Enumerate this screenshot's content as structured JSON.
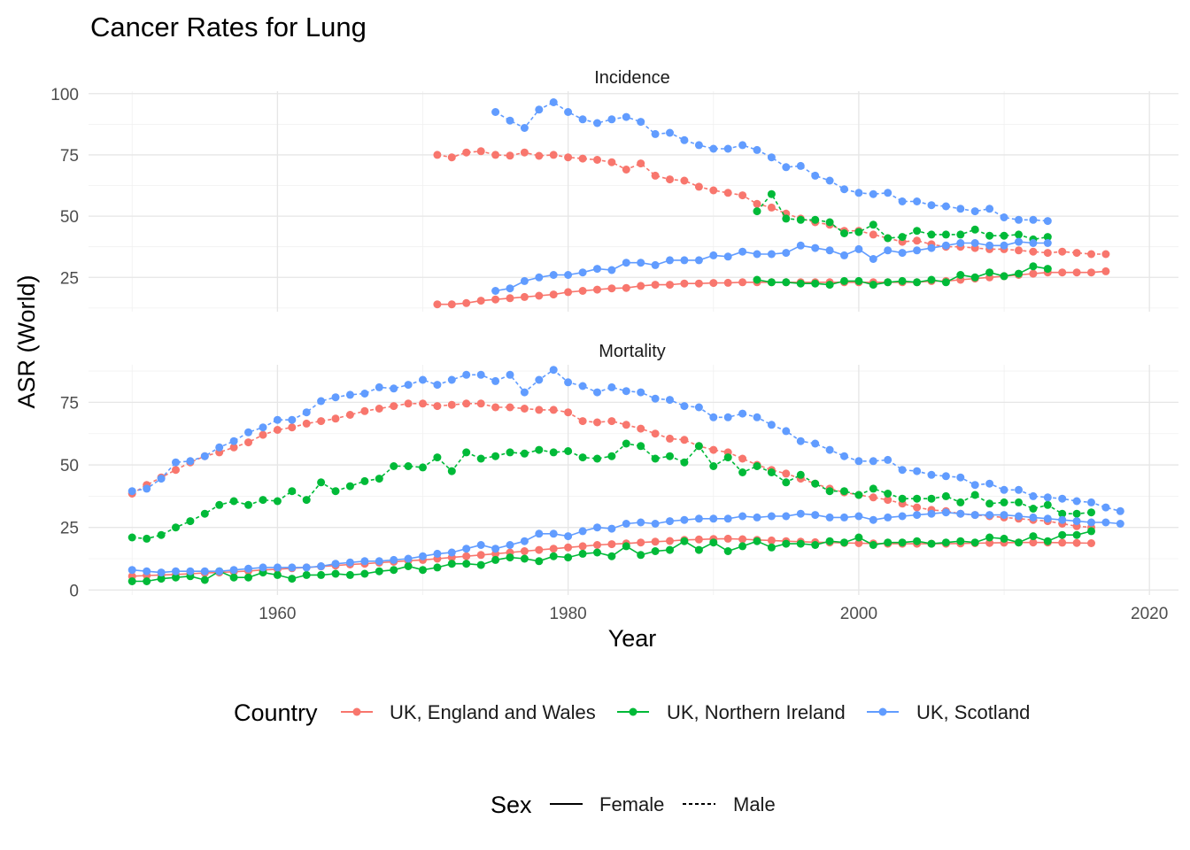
{
  "chart_data": {
    "type": "line",
    "title": "Cancer Rates for Lung",
    "xlabel": "Year",
    "ylabel": "ASR (World)",
    "x_ticks": [
      1960,
      1980,
      2000,
      2020
    ],
    "xlim": [
      1947,
      2022
    ],
    "grid": true,
    "colors": {
      "UK, England and Wales": "#F8766D",
      "UK, Northern Ireland": "#00BA38",
      "UK, Scotland": "#619CFF"
    },
    "legend": {
      "position": "bottom",
      "country_title": "Country",
      "countries": [
        "UK, England and Wales",
        "UK, Northern Ireland",
        "UK, Scotland"
      ],
      "sex_title": "Sex",
      "sexes": [
        {
          "label": "Female",
          "linetype": "solid"
        },
        {
          "label": "Male",
          "linetype": "dashed"
        }
      ]
    },
    "panels": [
      {
        "label": "Incidence",
        "ylim": [
          11,
          101
        ],
        "y_ticks": [
          25,
          50,
          75,
          100
        ],
        "series": [
          {
            "country": "UK, England and Wales",
            "sex": "Male",
            "start": 1971,
            "values": [
              75.0,
              74.0,
              76.0,
              76.5,
              75.0,
              74.7,
              76.0,
              74.6,
              75.0,
              74.0,
              73.5,
              73.0,
              72.0,
              69.0,
              71.5,
              66.5,
              65.0,
              64.5,
              62.0,
              60.5,
              59.5,
              58.5,
              55.0,
              53.5,
              51.0,
              49.0,
              47.5,
              46.5,
              44.0,
              44.0,
              42.5,
              41.0,
              39.5,
              40.0,
              38.5,
              37.5,
              37.5,
              37.0,
              36.5,
              36.5,
              36.0,
              35.5,
              35.0,
              35.5,
              35.0,
              34.5,
              34.5
            ]
          },
          {
            "country": "UK, England and Wales",
            "sex": "Female",
            "start": 1971,
            "values": [
              14.0,
              14.0,
              14.5,
              15.5,
              16.0,
              16.5,
              17.0,
              17.5,
              18.0,
              19.0,
              19.5,
              20.0,
              20.5,
              20.7,
              21.5,
              22.0,
              22.0,
              22.5,
              22.5,
              22.7,
              22.8,
              23.0,
              23.0,
              23.0,
              23.0,
              23.0,
              23.0,
              23.0,
              23.0,
              23.0,
              23.0,
              23.0,
              23.0,
              23.0,
              23.5,
              23.5,
              24.0,
              24.5,
              25.0,
              25.5,
              26.0,
              26.5,
              27.0,
              27.0,
              27.0,
              27.0,
              27.5
            ]
          },
          {
            "country": "UK, Northern Ireland",
            "sex": "Male",
            "start": 1993,
            "values": [
              52.0,
              59.0,
              49.0,
              48.5,
              48.5,
              47.5,
              43.0,
              43.5,
              46.5,
              41.0,
              41.5,
              44.0,
              42.5,
              42.5,
              42.5,
              44.5,
              42.0,
              42.0,
              42.5,
              40.5,
              41.5
            ]
          },
          {
            "country": "UK, Northern Ireland",
            "sex": "Female",
            "start": 1993,
            "values": [
              24.0,
              23.0,
              23.0,
              22.5,
              22.5,
              22.0,
              23.5,
              23.5,
              22.0,
              23.0,
              23.5,
              23.0,
              24.0,
              23.0,
              26.0,
              25.0,
              27.0,
              25.5,
              26.5,
              29.5,
              28.5
            ]
          },
          {
            "country": "UK, Scotland",
            "sex": "Male",
            "start": 1975,
            "values": [
              92.5,
              89.0,
              86.0,
              93.5,
              96.5,
              92.5,
              89.5,
              88.0,
              89.5,
              90.5,
              88.5,
              83.5,
              84.0,
              81.0,
              79.0,
              77.5,
              77.5,
              79.0,
              77.0,
              74.0,
              70.0,
              70.5,
              66.5,
              64.5,
              61.0,
              59.5,
              59.0,
              59.5,
              56.0,
              56.0,
              54.5,
              54.0,
              53.0,
              52.0,
              53.0,
              49.5,
              48.5,
              48.5,
              48.0
            ]
          },
          {
            "country": "UK, Scotland",
            "sex": "Female",
            "start": 1975,
            "values": [
              19.5,
              20.5,
              23.5,
              25.0,
              26.0,
              26.0,
              27.0,
              28.5,
              28.0,
              31.0,
              31.0,
              30.0,
              32.0,
              32.0,
              32.0,
              34.0,
              33.5,
              35.5,
              34.5,
              34.5,
              35.0,
              38.0,
              37.0,
              36.0,
              34.0,
              36.5,
              32.5,
              36.0,
              35.0,
              36.0,
              37.0,
              38.0,
              39.0,
              39.0,
              38.0,
              38.0,
              39.5,
              39.0,
              39.0
            ]
          }
        ]
      },
      {
        "label": "Mortality",
        "ylim": [
          -2,
          90
        ],
        "y_ticks": [
          0,
          25,
          50,
          75
        ],
        "series": [
          {
            "country": "UK, England and Wales",
            "sex": "Male",
            "start": 1950,
            "values": [
              38.5,
              42.0,
              45.0,
              48.0,
              51.0,
              53.5,
              55.0,
              57.0,
              59.0,
              62.0,
              64.0,
              65.0,
              66.5,
              67.5,
              68.5,
              70.0,
              71.5,
              72.5,
              73.5,
              74.5,
              74.5,
              73.5,
              74.0,
              74.5,
              74.5,
              73.0,
              73.0,
              72.5,
              72.0,
              72.0,
              71.0,
              67.5,
              67.0,
              67.5,
              66.0,
              64.5,
              62.5,
              60.5,
              60.0,
              57.5,
              56.0,
              55.0,
              52.5,
              50.0,
              48.0,
              46.5,
              44.5,
              42.5,
              40.5,
              39.0,
              38.0,
              37.0,
              36.0,
              34.5,
              33.0,
              32.0,
              31.5,
              30.5,
              30.0,
              29.5,
              29.0,
              28.5,
              28.0,
              27.5,
              26.5,
              25.5,
              25.0
            ]
          },
          {
            "country": "UK, England and Wales",
            "sex": "Female",
            "start": 1950,
            "values": [
              5.5,
              5.8,
              6.0,
              6.2,
              6.5,
              6.8,
              7.0,
              7.3,
              7.6,
              8.0,
              8.3,
              8.7,
              9.0,
              9.4,
              9.8,
              10.2,
              10.5,
              10.9,
              11.3,
              11.7,
              12.0,
              12.5,
              13.0,
              13.5,
              14.0,
              14.5,
              15.0,
              15.5,
              16.0,
              16.5,
              17.0,
              17.5,
              18.0,
              18.3,
              18.6,
              19.0,
              19.3,
              19.6,
              20.0,
              20.2,
              20.4,
              20.5,
              20.3,
              20.0,
              19.8,
              19.5,
              19.3,
              19.1,
              19.0,
              18.8,
              18.7,
              18.6,
              18.5,
              18.5,
              18.5,
              18.5,
              18.5,
              18.6,
              18.7,
              18.8,
              18.9,
              19.0,
              19.0,
              19.0,
              18.9,
              18.8,
              18.7
            ]
          },
          {
            "country": "UK, Northern Ireland",
            "sex": "Male",
            "start": 1950,
            "values": [
              21.0,
              20.5,
              22.0,
              25.0,
              27.5,
              30.5,
              34.0,
              35.5,
              34.0,
              36.0,
              35.5,
              39.5,
              36.0,
              43.0,
              39.5,
              41.5,
              43.5,
              44.5,
              49.5,
              49.5,
              49.0,
              53.0,
              47.5,
              55.0,
              52.5,
              53.5,
              55.0,
              54.5,
              56.0,
              55.0,
              55.5,
              53.0,
              52.5,
              53.5,
              58.5,
              57.5,
              52.5,
              53.5,
              51.0,
              57.5,
              49.5,
              53.0,
              47.0,
              49.5,
              47.0,
              43.0,
              46.0,
              42.5,
              39.5,
              39.5,
              38.0,
              40.5,
              38.5,
              36.5,
              36.5,
              36.5,
              37.5,
              35.0,
              38.0,
              34.5,
              35.0,
              35.0,
              32.5,
              34.0,
              30.5,
              30.5,
              31.0
            ]
          },
          {
            "country": "UK, Northern Ireland",
            "sex": "Female",
            "start": 1950,
            "values": [
              3.5,
              3.5,
              4.5,
              5.0,
              5.5,
              4.0,
              7.5,
              5.0,
              5.0,
              7.0,
              6.0,
              4.5,
              6.0,
              6.0,
              6.5,
              6.0,
              6.5,
              7.5,
              8.0,
              9.5,
              8.0,
              9.0,
              10.5,
              10.5,
              10.0,
              12.0,
              13.0,
              12.5,
              11.5,
              13.5,
              13.0,
              14.5,
              15.0,
              13.5,
              17.5,
              14.0,
              15.5,
              16.0,
              19.5,
              16.0,
              19.0,
              15.5,
              17.5,
              19.5,
              17.0,
              18.5,
              18.5,
              18.0,
              19.5,
              19.0,
              21.0,
              18.0,
              19.0,
              19.0,
              19.5,
              18.5,
              19.0,
              19.5,
              19.0,
              21.0,
              20.5,
              19.0,
              21.5,
              19.5,
              22.0,
              22.0,
              23.5
            ]
          },
          {
            "country": "UK, Scotland",
            "sex": "Male",
            "start": 1950,
            "values": [
              39.5,
              40.5,
              44.5,
              51.0,
              51.5,
              53.5,
              57.0,
              59.5,
              63.0,
              65.0,
              68.0,
              68.0,
              71.0,
              75.5,
              77.0,
              78.0,
              78.5,
              81.0,
              80.5,
              82.0,
              84.0,
              82.0,
              84.0,
              86.0,
              86.0,
              83.5,
              86.0,
              79.0,
              84.0,
              88.0,
              83.0,
              81.5,
              79.0,
              81.0,
              79.5,
              79.0,
              76.5,
              76.0,
              73.5,
              73.0,
              69.0,
              69.0,
              70.5,
              69.0,
              66.0,
              63.5,
              59.5,
              58.5,
              56.0,
              53.5,
              51.5,
              51.5,
              52.0,
              48.0,
              47.5,
              46.0,
              45.5,
              45.0,
              42.0,
              42.5,
              40.0,
              40.0,
              37.5,
              37.0,
              36.5,
              35.5,
              35.0,
              33.0,
              31.5
            ]
          },
          {
            "country": "UK, Scotland",
            "sex": "Female",
            "start": 1950,
            "values": [
              8.0,
              7.5,
              7.0,
              7.5,
              7.5,
              7.5,
              7.5,
              8.0,
              8.5,
              9.0,
              9.0,
              9.0,
              9.0,
              9.5,
              10.5,
              11.0,
              11.5,
              11.5,
              12.0,
              12.5,
              13.5,
              14.5,
              15.0,
              16.5,
              18.0,
              16.5,
              18.0,
              19.5,
              22.5,
              22.5,
              21.5,
              23.5,
              25.0,
              24.5,
              26.5,
              27.0,
              26.5,
              27.5,
              28.0,
              28.5,
              28.5,
              28.5,
              29.5,
              29.0,
              29.5,
              29.5,
              30.5,
              30.0,
              29.0,
              29.0,
              29.5,
              28.0,
              29.0,
              29.5,
              30.0,
              30.5,
              31.0,
              30.5,
              30.0,
              30.0,
              30.0,
              29.5,
              29.0,
              28.5,
              28.0,
              27.5,
              27.0,
              27.0,
              26.5
            ]
          }
        ]
      }
    ]
  }
}
